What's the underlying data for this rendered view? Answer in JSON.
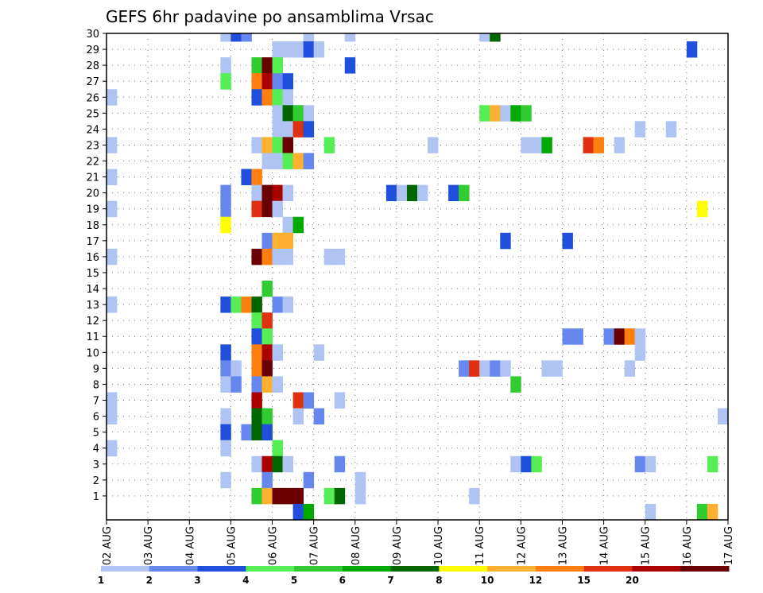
{
  "chart_data": {
    "type": "heatmap",
    "title": "GEFS 6hr padavine po ansamblima Vrsac",
    "x_tick_labels": [
      "02 AUG",
      "03 AUG",
      "04 AUG",
      "05 AUG",
      "06 AUG",
      "07 AUG",
      "08 AUG",
      "09 AUG",
      "10 AUG",
      "11 AUG",
      "12 AUG",
      "13 AUG",
      "14 AUG",
      "15 AUG",
      "16 AUG",
      "17 AUG"
    ],
    "y_tick_labels": [
      "1",
      "2",
      "3",
      "4",
      "5",
      "6",
      "7",
      "8",
      "9",
      "10",
      "11",
      "12",
      "13",
      "14",
      "15",
      "16",
      "17",
      "18",
      "19",
      "20",
      "21",
      "22",
      "23",
      "24",
      "25",
      "26",
      "27",
      "28",
      "29",
      "30"
    ],
    "x_range_days": [
      0,
      15
    ],
    "y_range_members": [
      0,
      30
    ],
    "grid": true,
    "legend_placement": "bottom",
    "colorbar": {
      "labels": [
        "1",
        "2",
        "3",
        "4",
        "5",
        "6",
        "7",
        "8",
        "10",
        "12",
        "15",
        "20"
      ],
      "colors": [
        "#b0c4f4",
        "#6688ee",
        "#1f4fdc",
        "#55ee55",
        "#30cc30",
        "#00aa00",
        "#006600",
        "#ffff00",
        "#ffb030",
        "#ff7f0e",
        "#e03010",
        "#aa0000",
        "#6a0000"
      ]
    },
    "cell_colors": [
      "#b0c4f4",
      "#6688ee",
      "#1f4fdc",
      "#55ee55",
      "#30cc30",
      "#00aa00",
      "#006600",
      "#ffff00",
      "#ffb030",
      "#ff7f0e",
      "#e03010",
      "#aa0000",
      "#6a0000"
    ],
    "cells_note": "each cell = [day offset from 02 AUG (step 0.25 = 6h), ensemble member (0 = below member 1), color class index 0-12]",
    "cells": [
      [
        2.75,
        30,
        0
      ],
      [
        3.0,
        30,
        2
      ],
      [
        3.25,
        30,
        1
      ],
      [
        4.75,
        30,
        0
      ],
      [
        5.75,
        30,
        0
      ],
      [
        9.0,
        30,
        0
      ],
      [
        9.25,
        30,
        6
      ],
      [
        4.0,
        29,
        0
      ],
      [
        4.25,
        29,
        0
      ],
      [
        4.5,
        29,
        0
      ],
      [
        4.75,
        29,
        2
      ],
      [
        5.0,
        29,
        0
      ],
      [
        14.0,
        29,
        2
      ],
      [
        2.75,
        28,
        0
      ],
      [
        3.5,
        28,
        4
      ],
      [
        3.75,
        28,
        12
      ],
      [
        4.0,
        28,
        3
      ],
      [
        5.75,
        28,
        2
      ],
      [
        2.75,
        27,
        3
      ],
      [
        3.5,
        27,
        9
      ],
      [
        3.75,
        27,
        11
      ],
      [
        4.0,
        27,
        1
      ],
      [
        4.25,
        27,
        2
      ],
      [
        0.0,
        26,
        0
      ],
      [
        3.5,
        26,
        2
      ],
      [
        3.75,
        26,
        9
      ],
      [
        4.0,
        26,
        3
      ],
      [
        4.25,
        26,
        0
      ],
      [
        4.0,
        25,
        0
      ],
      [
        4.25,
        25,
        6
      ],
      [
        4.5,
        25,
        4
      ],
      [
        4.75,
        25,
        0
      ],
      [
        9.0,
        25,
        3
      ],
      [
        9.25,
        25,
        8
      ],
      [
        9.5,
        25,
        0
      ],
      [
        9.75,
        25,
        5
      ],
      [
        10.0,
        25,
        4
      ],
      [
        4.0,
        24,
        0
      ],
      [
        4.25,
        24,
        0
      ],
      [
        4.5,
        24,
        10
      ],
      [
        4.75,
        24,
        2
      ],
      [
        12.75,
        24,
        0
      ],
      [
        13.5,
        24,
        0
      ],
      [
        0.0,
        23,
        0
      ],
      [
        3.5,
        23,
        0
      ],
      [
        3.75,
        23,
        8
      ],
      [
        4.0,
        23,
        3
      ],
      [
        4.25,
        23,
        12
      ],
      [
        5.25,
        23,
        3
      ],
      [
        7.75,
        23,
        0
      ],
      [
        10.0,
        23,
        0
      ],
      [
        10.25,
        23,
        0
      ],
      [
        10.5,
        23,
        5
      ],
      [
        11.5,
        23,
        10
      ],
      [
        11.75,
        23,
        9
      ],
      [
        12.25,
        23,
        0
      ],
      [
        3.75,
        22,
        0
      ],
      [
        4.0,
        22,
        0
      ],
      [
        4.25,
        22,
        3
      ],
      [
        4.5,
        22,
        8
      ],
      [
        4.75,
        22,
        1
      ],
      [
        0.0,
        21,
        0
      ],
      [
        3.25,
        21,
        2
      ],
      [
        3.5,
        21,
        9
      ],
      [
        2.75,
        20,
        1
      ],
      [
        3.5,
        20,
        0
      ],
      [
        3.75,
        20,
        12
      ],
      [
        4.0,
        20,
        11
      ],
      [
        4.25,
        20,
        0
      ],
      [
        6.75,
        20,
        2
      ],
      [
        7.0,
        20,
        0
      ],
      [
        7.25,
        20,
        6
      ],
      [
        7.5,
        20,
        0
      ],
      [
        8.25,
        20,
        2
      ],
      [
        8.5,
        20,
        4
      ],
      [
        0.0,
        19,
        0
      ],
      [
        2.75,
        19,
        1
      ],
      [
        3.5,
        19,
        10
      ],
      [
        3.75,
        19,
        12
      ],
      [
        4.0,
        19,
        0
      ],
      [
        14.25,
        19,
        7
      ],
      [
        2.75,
        18,
        7
      ],
      [
        4.25,
        18,
        0
      ],
      [
        4.5,
        18,
        5
      ],
      [
        3.75,
        17,
        1
      ],
      [
        4.0,
        17,
        8
      ],
      [
        4.25,
        17,
        8
      ],
      [
        9.5,
        17,
        2
      ],
      [
        11.0,
        17,
        2
      ],
      [
        0.0,
        16,
        0
      ],
      [
        3.5,
        16,
        12
      ],
      [
        3.75,
        16,
        9
      ],
      [
        4.0,
        16,
        0
      ],
      [
        4.25,
        16,
        0
      ],
      [
        5.25,
        16,
        0
      ],
      [
        5.5,
        16,
        0
      ],
      [
        3.75,
        14,
        4
      ],
      [
        0.0,
        13,
        0
      ],
      [
        2.75,
        13,
        2
      ],
      [
        3.0,
        13,
        3
      ],
      [
        3.25,
        13,
        9
      ],
      [
        3.5,
        13,
        6
      ],
      [
        4.0,
        13,
        1
      ],
      [
        4.25,
        13,
        0
      ],
      [
        3.5,
        12,
        3
      ],
      [
        3.75,
        12,
        10
      ],
      [
        3.5,
        11,
        2
      ],
      [
        3.75,
        11,
        3
      ],
      [
        11.0,
        11,
        1
      ],
      [
        11.25,
        11,
        1
      ],
      [
        12.0,
        11,
        1
      ],
      [
        12.25,
        11,
        12
      ],
      [
        12.5,
        11,
        9
      ],
      [
        12.75,
        11,
        0
      ],
      [
        2.75,
        10,
        2
      ],
      [
        3.5,
        10,
        9
      ],
      [
        3.75,
        10,
        11
      ],
      [
        4.0,
        10,
        0
      ],
      [
        5.0,
        10,
        0
      ],
      [
        12.75,
        10,
        0
      ],
      [
        2.75,
        9,
        1
      ],
      [
        3.0,
        9,
        0
      ],
      [
        3.5,
        9,
        9
      ],
      [
        3.75,
        9,
        12
      ],
      [
        8.5,
        9,
        1
      ],
      [
        8.75,
        9,
        10
      ],
      [
        9.0,
        9,
        0
      ],
      [
        9.25,
        9,
        1
      ],
      [
        9.5,
        9,
        0
      ],
      [
        10.5,
        9,
        0
      ],
      [
        10.75,
        9,
        0
      ],
      [
        12.5,
        9,
        0
      ],
      [
        2.75,
        8,
        0
      ],
      [
        3.0,
        8,
        1
      ],
      [
        3.5,
        8,
        1
      ],
      [
        3.75,
        8,
        8
      ],
      [
        4.0,
        8,
        0
      ],
      [
        9.75,
        8,
        4
      ],
      [
        0.0,
        7,
        0
      ],
      [
        3.5,
        7,
        11
      ],
      [
        4.5,
        7,
        10
      ],
      [
        4.75,
        7,
        1
      ],
      [
        5.5,
        7,
        0
      ],
      [
        0.0,
        6,
        0
      ],
      [
        2.75,
        6,
        0
      ],
      [
        3.5,
        6,
        6
      ],
      [
        3.75,
        6,
        4
      ],
      [
        4.5,
        6,
        0
      ],
      [
        5.0,
        6,
        1
      ],
      [
        14.75,
        6,
        0
      ],
      [
        2.75,
        5,
        2
      ],
      [
        3.25,
        5,
        1
      ],
      [
        3.5,
        5,
        6
      ],
      [
        3.75,
        5,
        2
      ],
      [
        0.0,
        4,
        0
      ],
      [
        2.75,
        4,
        0
      ],
      [
        4.0,
        4,
        3
      ],
      [
        3.5,
        3,
        0
      ],
      [
        3.75,
        3,
        11
      ],
      [
        4.0,
        3,
        6
      ],
      [
        4.25,
        3,
        0
      ],
      [
        5.5,
        3,
        1
      ],
      [
        9.75,
        3,
        0
      ],
      [
        10.0,
        3,
        2
      ],
      [
        10.25,
        3,
        3
      ],
      [
        12.75,
        3,
        1
      ],
      [
        13.0,
        3,
        0
      ],
      [
        14.5,
        3,
        3
      ],
      [
        2.75,
        2,
        0
      ],
      [
        3.75,
        2,
        1
      ],
      [
        4.75,
        2,
        1
      ],
      [
        6.0,
        2,
        0
      ],
      [
        3.5,
        1,
        4
      ],
      [
        3.75,
        1,
        8
      ],
      [
        4.0,
        1,
        12
      ],
      [
        4.25,
        1,
        12
      ],
      [
        4.5,
        1,
        12
      ],
      [
        5.25,
        1,
        3
      ],
      [
        5.5,
        1,
        6
      ],
      [
        6.0,
        1,
        0
      ],
      [
        8.75,
        1,
        0
      ],
      [
        4.5,
        0,
        2
      ],
      [
        4.75,
        0,
        5
      ],
      [
        13.0,
        0,
        0
      ],
      [
        14.25,
        0,
        4
      ],
      [
        14.5,
        0,
        8
      ]
    ]
  }
}
